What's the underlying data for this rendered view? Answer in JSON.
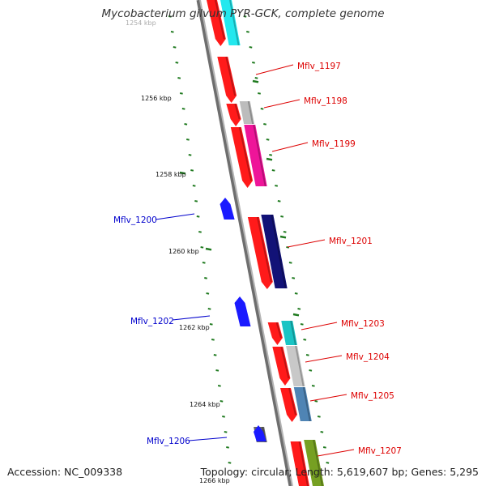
{
  "title": "Mycobacterium gilvum PYR-GCK, complete genome",
  "accession_text": "Accession: NC_009338",
  "summary_text": "Topology: circular; Length: 5,619,607 bp; Genes: 5,295",
  "colors": {
    "backbone": "#8c8c8c",
    "tick": "#1f7a1f",
    "forward_label": "#dd0000",
    "reverse_label": "#0000cc",
    "gene_red": "#ff1a1a",
    "gene_blue": "#1a1aff"
  },
  "scale_labels": [
    "1254 kbp",
    "1256 kbp",
    "1258 kbp",
    "1260 kbp",
    "1262 kbp",
    "1264 kbp",
    "1266 kbp"
  ],
  "genes": [
    {
      "label": "Mflv_1197",
      "strand": "forward"
    },
    {
      "label": "Mflv_1198",
      "strand": "forward"
    },
    {
      "label": "Mflv_1199",
      "strand": "forward"
    },
    {
      "label": "Mflv_1200",
      "strand": "reverse"
    },
    {
      "label": "Mflv_1201",
      "strand": "forward"
    },
    {
      "label": "Mflv_1202",
      "strand": "reverse"
    },
    {
      "label": "Mflv_1203",
      "strand": "forward"
    },
    {
      "label": "Mflv_1204",
      "strand": "forward"
    },
    {
      "label": "Mflv_1205",
      "strand": "forward"
    },
    {
      "label": "Mflv_1206",
      "strand": "reverse"
    },
    {
      "label": "Mflv_1207",
      "strand": "forward"
    }
  ]
}
